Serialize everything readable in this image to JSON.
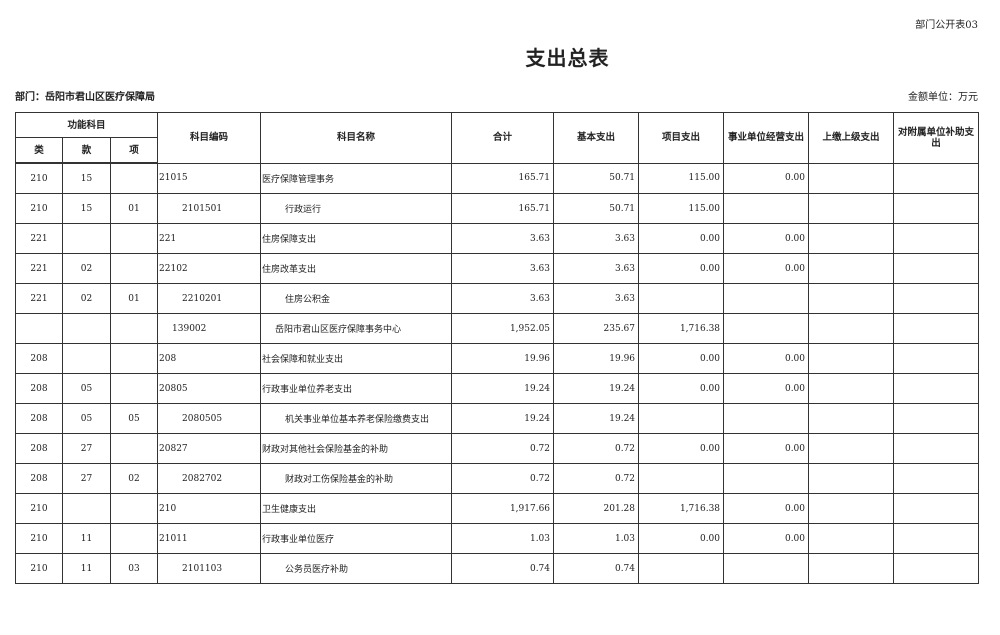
{
  "form_no": "部门公开表03",
  "title": "支出总表",
  "department": "部门：岳阳市君山区医疗保障局",
  "unit": "金额单位：万元",
  "headers": {
    "func_subject": "功能科目",
    "lei": "类",
    "kuan": "款",
    "xiang": "项",
    "code": "科目编码",
    "name": "科目名称",
    "total": "合计",
    "basic": "基本支出",
    "project": "项目支出",
    "business": "事业单位经营支出",
    "remit": "上缴上级支出",
    "subsidy": "对附属单位补助支出"
  },
  "rows": [
    {
      "lei": "210",
      "kuan": "15",
      "xiang": "",
      "code": "21015",
      "name": "医疗保障管理事务",
      "total": "165.71",
      "basic": "50.71",
      "project": "115.00",
      "business": "0.00",
      "remit": "",
      "subsidy": "",
      "level": 1
    },
    {
      "lei": "210",
      "kuan": "15",
      "xiang": "01",
      "code": "2101501",
      "name": "行政运行",
      "total": "165.71",
      "basic": "50.71",
      "project": "115.00",
      "business": "",
      "remit": "",
      "subsidy": "",
      "level": 2
    },
    {
      "lei": "221",
      "kuan": "",
      "xiang": "",
      "code": "221",
      "name": "住房保障支出",
      "total": "3.63",
      "basic": "3.63",
      "project": "0.00",
      "business": "0.00",
      "remit": "",
      "subsidy": "",
      "level": 1
    },
    {
      "lei": "221",
      "kuan": "02",
      "xiang": "",
      "code": "22102",
      "name": "住房改革支出",
      "total": "3.63",
      "basic": "3.63",
      "project": "0.00",
      "business": "0.00",
      "remit": "",
      "subsidy": "",
      "level": 1
    },
    {
      "lei": "221",
      "kuan": "02",
      "xiang": "01",
      "code": "2210201",
      "name": "住房公积金",
      "total": "3.63",
      "basic": "3.63",
      "project": "",
      "business": "",
      "remit": "",
      "subsidy": "",
      "level": 2
    },
    {
      "lei": "",
      "kuan": "",
      "xiang": "",
      "code": "139002",
      "name": "岳阳市君山区医疗保障事务中心",
      "total": "1,952.05",
      "basic": "235.67",
      "project": "1,716.38",
      "business": "",
      "remit": "",
      "subsidy": "",
      "level": 3
    },
    {
      "lei": "208",
      "kuan": "",
      "xiang": "",
      "code": "208",
      "name": "社会保障和就业支出",
      "total": "19.96",
      "basic": "19.96",
      "project": "0.00",
      "business": "0.00",
      "remit": "",
      "subsidy": "",
      "level": 1
    },
    {
      "lei": "208",
      "kuan": "05",
      "xiang": "",
      "code": "20805",
      "name": "行政事业单位养老支出",
      "total": "19.24",
      "basic": "19.24",
      "project": "0.00",
      "business": "0.00",
      "remit": "",
      "subsidy": "",
      "level": 1
    },
    {
      "lei": "208",
      "kuan": "05",
      "xiang": "05",
      "code": "2080505",
      "name": "机关事业单位基本养老保险缴费支出",
      "total": "19.24",
      "basic": "19.24",
      "project": "",
      "business": "",
      "remit": "",
      "subsidy": "",
      "level": 2
    },
    {
      "lei": "208",
      "kuan": "27",
      "xiang": "",
      "code": "20827",
      "name": "财政对其他社会保险基金的补助",
      "total": "0.72",
      "basic": "0.72",
      "project": "0.00",
      "business": "0.00",
      "remit": "",
      "subsidy": "",
      "level": 1
    },
    {
      "lei": "208",
      "kuan": "27",
      "xiang": "02",
      "code": "2082702",
      "name": "财政对工伤保险基金的补助",
      "total": "0.72",
      "basic": "0.72",
      "project": "",
      "business": "",
      "remit": "",
      "subsidy": "",
      "level": 2
    },
    {
      "lei": "210",
      "kuan": "",
      "xiang": "",
      "code": "210",
      "name": "卫生健康支出",
      "total": "1,917.66",
      "basic": "201.28",
      "project": "1,716.38",
      "business": "0.00",
      "remit": "",
      "subsidy": "",
      "level": 1
    },
    {
      "lei": "210",
      "kuan": "11",
      "xiang": "",
      "code": "21011",
      "name": "行政事业单位医疗",
      "total": "1.03",
      "basic": "1.03",
      "project": "0.00",
      "business": "0.00",
      "remit": "",
      "subsidy": "",
      "level": 1
    },
    {
      "lei": "210",
      "kuan": "11",
      "xiang": "03",
      "code": "2101103",
      "name": "公务员医疗补助",
      "total": "0.74",
      "basic": "0.74",
      "project": "",
      "business": "",
      "remit": "",
      "subsidy": "",
      "level": 2
    }
  ]
}
